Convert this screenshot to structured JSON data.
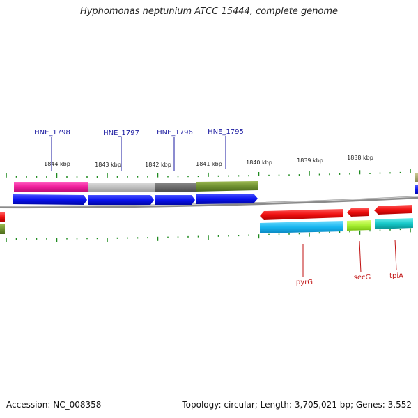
{
  "title": "Hyphomonas neptunium ATCC 15444, complete genome",
  "footer": {
    "accession": "Accession: NC_008358",
    "summary": "Topology: circular; Length: 3,705,021 bp; Genes: 3,552"
  },
  "ruler": {
    "labels": [
      "1844 kbp",
      "1843 kbp",
      "1842 kbp",
      "1841 kbp",
      "1840 kbp",
      "1839 kbp",
      "1838 kbp"
    ]
  },
  "genes_top": [
    "HNE_1798",
    "HNE_1797",
    "HNE_1796",
    "HNE_1795"
  ],
  "genes_bottom": [
    "pyrG",
    "secG",
    "tpiA"
  ],
  "colors": {
    "forward_cds": "#0a12ee",
    "reverse_cds": "#f01010",
    "label_top": "#1a1aa0",
    "label_bottom": "#c01010",
    "tick": "#1e8a1e",
    "backbone": "#808080"
  }
}
